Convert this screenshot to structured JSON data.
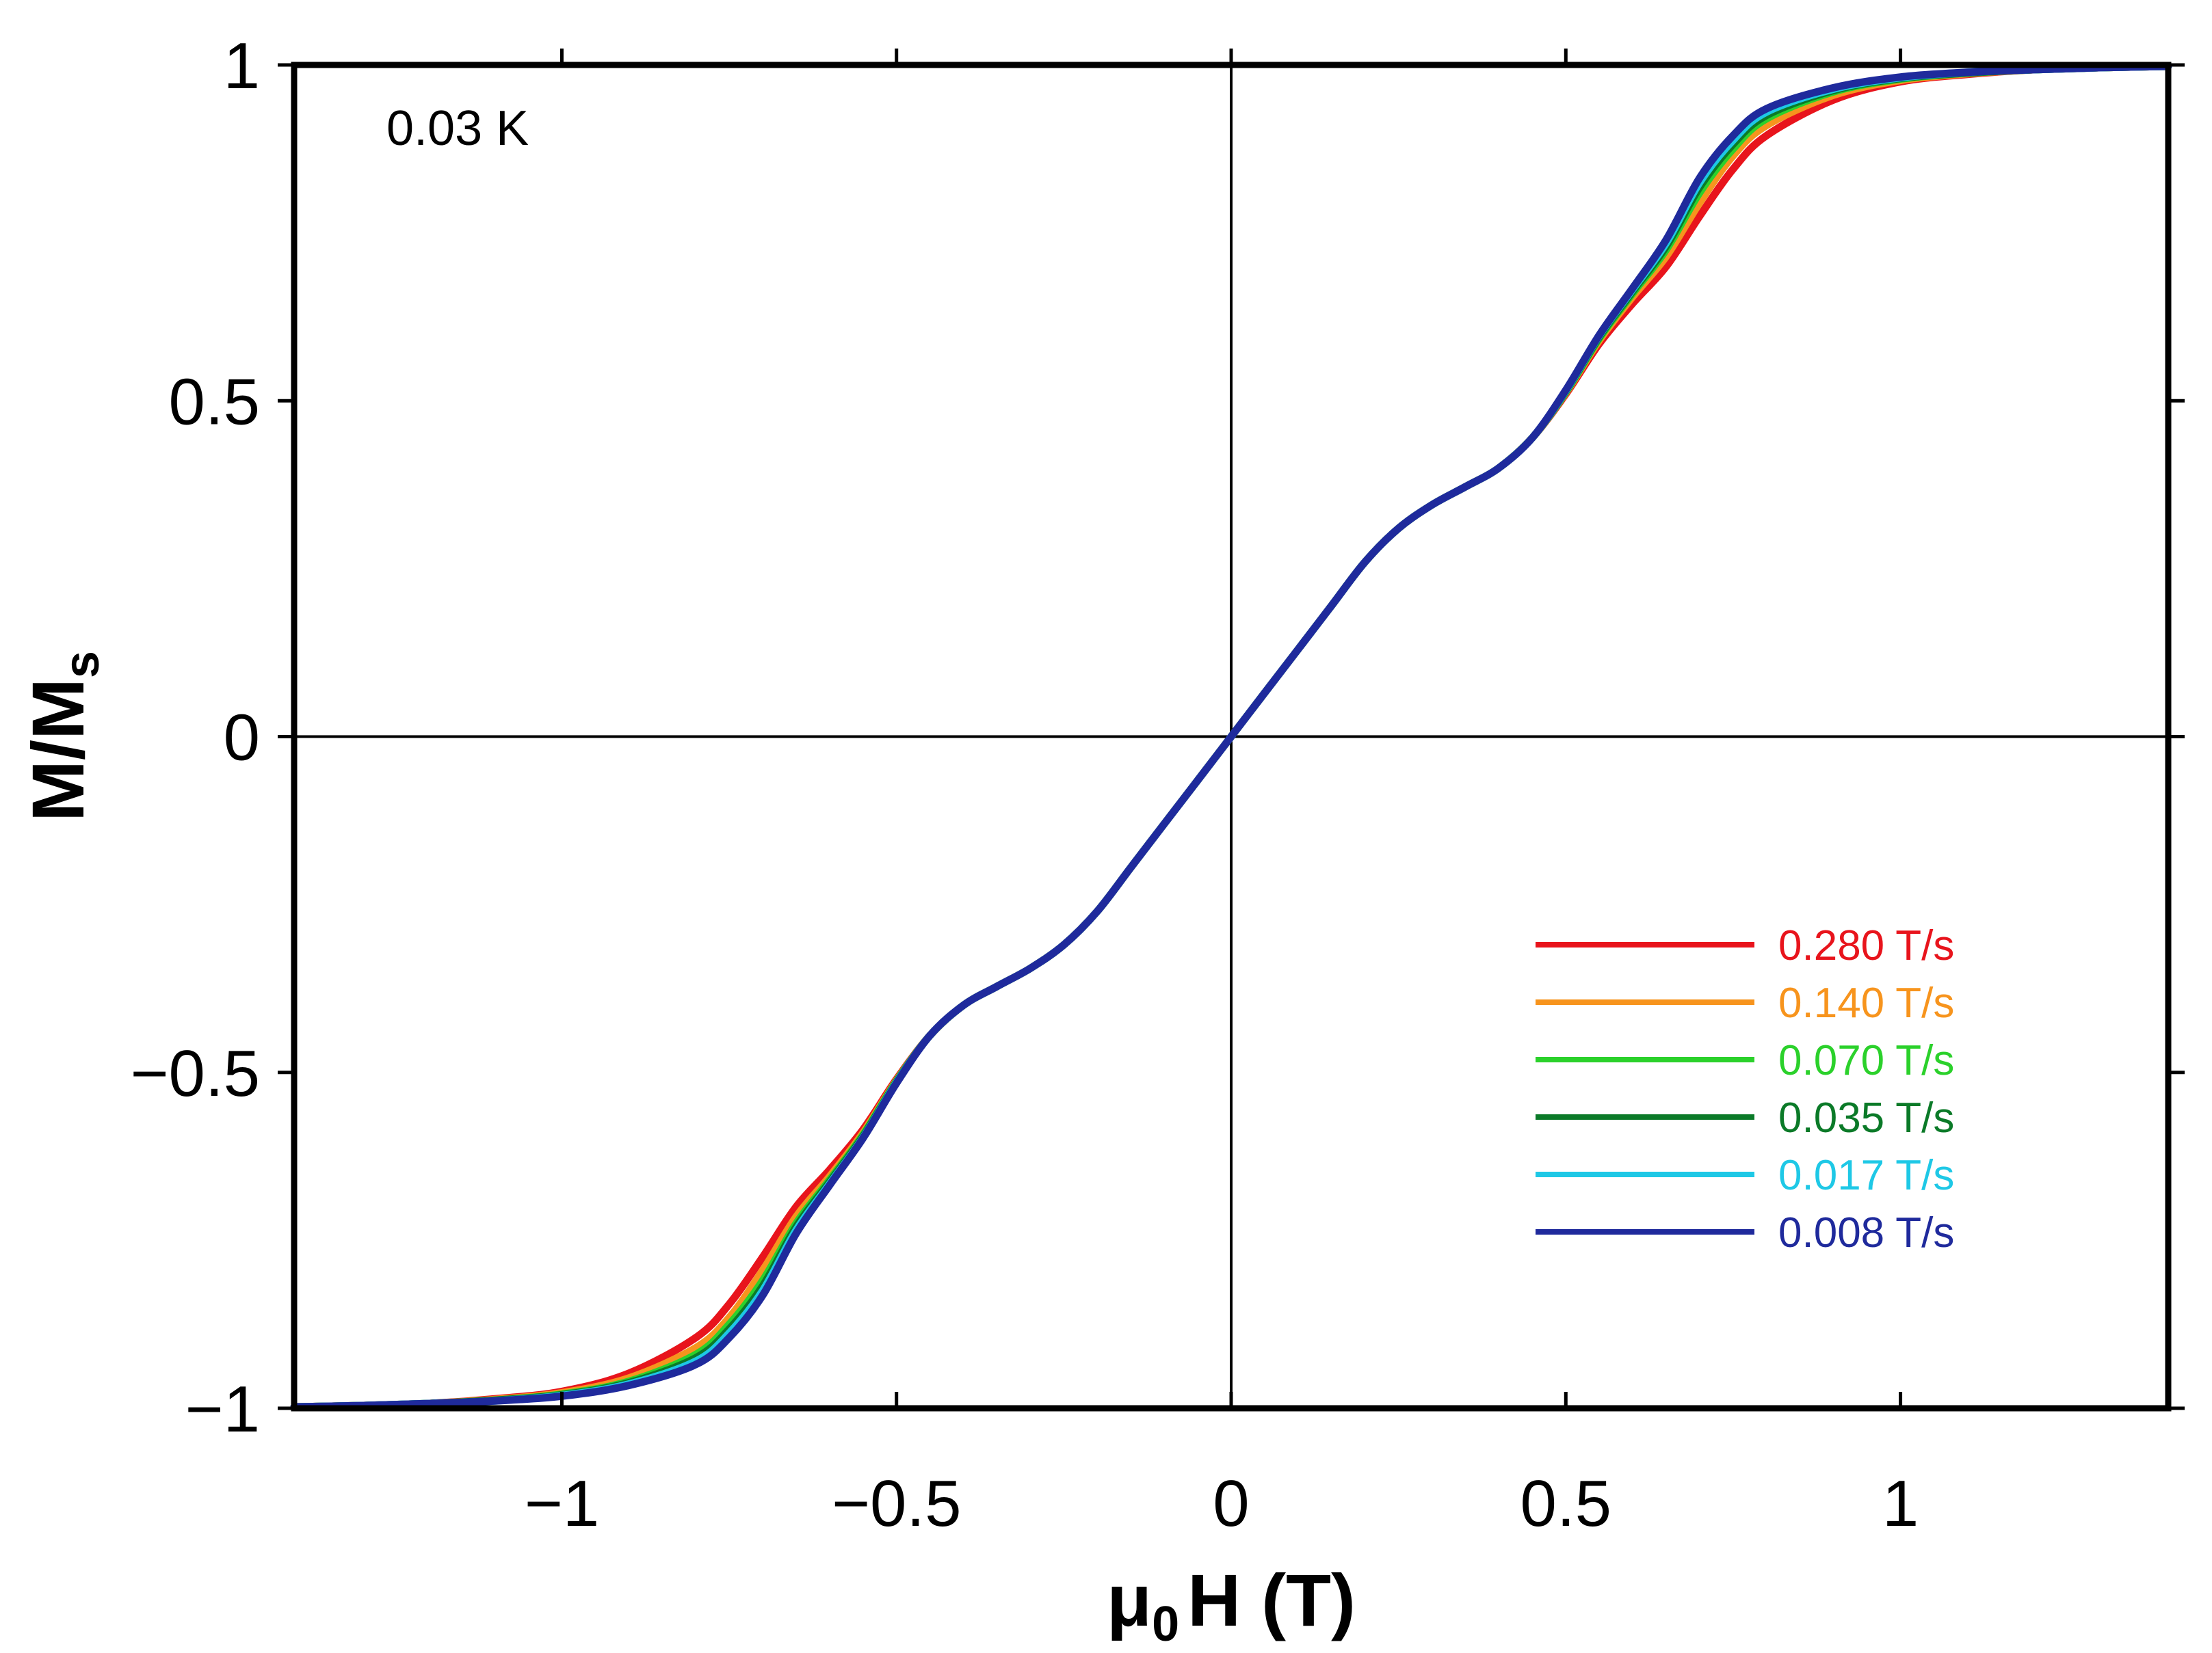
{
  "chart_data": {
    "type": "line",
    "title": "",
    "annotation": "0.03 K",
    "xlabel": {
      "prefix": "μ",
      "subscript": "0",
      "suffix": "H (T)"
    },
    "ylabel": {
      "main": "M/M",
      "subscript": "s"
    },
    "xlim": [
      -1.4,
      1.4
    ],
    "ylim": [
      -1.0,
      1.0
    ],
    "xticks": [
      -1,
      -0.5,
      0,
      0.5,
      1
    ],
    "xtick_labels": [
      "−1",
      "−0.5",
      "0",
      "0.5",
      "1"
    ],
    "yticks": [
      -1,
      -0.5,
      0,
      0.5,
      1
    ],
    "ytick_labels": [
      "−1",
      "−0.5",
      "0",
      "0.5",
      "1"
    ],
    "grid": false,
    "legend_position": "lower-right",
    "x": [
      -1.4,
      -1.3,
      -1.2,
      -1.1,
      -1.0,
      -0.9,
      -0.8,
      -0.75,
      -0.7,
      -0.65,
      -0.6,
      -0.55,
      -0.5,
      -0.45,
      -0.4,
      -0.35,
      -0.3,
      -0.25,
      -0.2,
      -0.15,
      -0.1,
      -0.05,
      0,
      0.05,
      0.1,
      0.15,
      0.2,
      0.25,
      0.3,
      0.35,
      0.4,
      0.45,
      0.5,
      0.55,
      0.6,
      0.65,
      0.7,
      0.75,
      0.8,
      0.9,
      1.0,
      1.1,
      1.2,
      1.3,
      1.4
    ],
    "series": [
      {
        "name": "0.280 T/s",
        "color": "#e8141c",
        "values": [
          -0.998,
          -0.996,
          -0.993,
          -0.986,
          -0.975,
          -0.948,
          -0.895,
          -0.845,
          -0.775,
          -0.7,
          -0.645,
          -0.585,
          -0.51,
          -0.445,
          -0.4,
          -0.372,
          -0.345,
          -0.31,
          -0.26,
          -0.195,
          -0.13,
          -0.065,
          0,
          0.065,
          0.13,
          0.195,
          0.26,
          0.31,
          0.345,
          0.372,
          0.4,
          0.445,
          0.51,
          0.585,
          0.645,
          0.7,
          0.775,
          0.845,
          0.895,
          0.948,
          0.975,
          0.986,
          0.993,
          0.996,
          0.998
        ]
      },
      {
        "name": "0.140 T/s",
        "color": "#f7941d",
        "values": [
          -0.998,
          -0.996,
          -0.993,
          -0.987,
          -0.977,
          -0.955,
          -0.91,
          -0.865,
          -0.795,
          -0.715,
          -0.655,
          -0.59,
          -0.512,
          -0.445,
          -0.4,
          -0.372,
          -0.345,
          -0.31,
          -0.26,
          -0.195,
          -0.13,
          -0.065,
          0,
          0.065,
          0.13,
          0.195,
          0.26,
          0.31,
          0.345,
          0.372,
          0.4,
          0.445,
          0.512,
          0.59,
          0.655,
          0.715,
          0.795,
          0.865,
          0.91,
          0.955,
          0.977,
          0.987,
          0.993,
          0.996,
          0.998
        ]
      },
      {
        "name": "0.070 T/s",
        "color": "#2bd12b",
        "values": [
          -0.998,
          -0.996,
          -0.993,
          -0.988,
          -0.979,
          -0.96,
          -0.92,
          -0.875,
          -0.81,
          -0.725,
          -0.66,
          -0.593,
          -0.513,
          -0.445,
          -0.4,
          -0.372,
          -0.345,
          -0.31,
          -0.26,
          -0.195,
          -0.13,
          -0.065,
          0,
          0.065,
          0.13,
          0.195,
          0.26,
          0.31,
          0.345,
          0.372,
          0.4,
          0.445,
          0.513,
          0.593,
          0.66,
          0.725,
          0.81,
          0.875,
          0.92,
          0.96,
          0.979,
          0.988,
          0.993,
          0.996,
          0.998
        ]
      },
      {
        "name": "0.035 T/s",
        "color": "#0b7a28",
        "values": [
          -0.998,
          -0.996,
          -0.993,
          -0.988,
          -0.98,
          -0.962,
          -0.925,
          -0.882,
          -0.818,
          -0.73,
          -0.663,
          -0.595,
          -0.514,
          -0.445,
          -0.4,
          -0.372,
          -0.345,
          -0.31,
          -0.26,
          -0.195,
          -0.13,
          -0.065,
          0,
          0.065,
          0.13,
          0.195,
          0.26,
          0.31,
          0.345,
          0.372,
          0.4,
          0.445,
          0.514,
          0.595,
          0.663,
          0.73,
          0.818,
          0.882,
          0.925,
          0.962,
          0.98,
          0.988,
          0.993,
          0.996,
          0.998
        ]
      },
      {
        "name": "0.017 T/s",
        "color": "#1ec8e6",
        "values": [
          -0.998,
          -0.996,
          -0.993,
          -0.989,
          -0.981,
          -0.964,
          -0.93,
          -0.888,
          -0.825,
          -0.735,
          -0.666,
          -0.597,
          -0.515,
          -0.445,
          -0.4,
          -0.372,
          -0.345,
          -0.31,
          -0.26,
          -0.195,
          -0.13,
          -0.065,
          0,
          0.065,
          0.13,
          0.195,
          0.26,
          0.31,
          0.345,
          0.372,
          0.4,
          0.445,
          0.515,
          0.597,
          0.666,
          0.735,
          0.825,
          0.888,
          0.93,
          0.964,
          0.981,
          0.989,
          0.993,
          0.996,
          0.998
        ]
      },
      {
        "name": "0.008 T/s",
        "color": "#1f2a9c",
        "values": [
          -0.998,
          -0.996,
          -0.993,
          -0.989,
          -0.982,
          -0.966,
          -0.935,
          -0.895,
          -0.832,
          -0.74,
          -0.668,
          -0.598,
          -0.516,
          -0.445,
          -0.4,
          -0.372,
          -0.345,
          -0.31,
          -0.26,
          -0.195,
          -0.13,
          -0.065,
          0,
          0.065,
          0.13,
          0.195,
          0.26,
          0.31,
          0.345,
          0.372,
          0.4,
          0.445,
          0.516,
          0.598,
          0.668,
          0.74,
          0.832,
          0.895,
          0.935,
          0.966,
          0.982,
          0.989,
          0.993,
          0.996,
          0.998
        ]
      }
    ]
  }
}
